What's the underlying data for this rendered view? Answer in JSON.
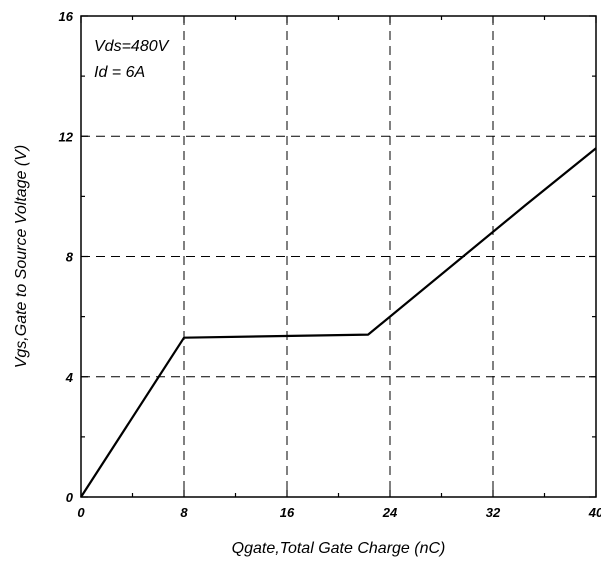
{
  "chart_data": {
    "type": "line",
    "title": "",
    "xlabel": "Qgate,Total Gate Charge (nC)",
    "ylabel": "Vgs,Gate to Source Voltage (V)",
    "xlim": [
      0,
      40
    ],
    "ylim": [
      0,
      16
    ],
    "x_ticks": [
      0,
      8,
      16,
      24,
      32,
      40
    ],
    "x_tick_labels": [
      "0",
      "8",
      "16",
      "24",
      "32",
      "40"
    ],
    "y_ticks": [
      0,
      4,
      8,
      12,
      16
    ],
    "y_tick_labels": [
      "0",
      "4",
      "8",
      "12",
      "16"
    ],
    "grid": true,
    "grid_style": "dashed",
    "annotations": [
      {
        "text": "Vds=480V",
        "position": "top-left"
      },
      {
        "text": "Id = 6A",
        "position": "top-left"
      }
    ],
    "series": [
      {
        "color": "#000000",
        "x": [
          0,
          8,
          22.3,
          34.5,
          40
        ],
        "y": [
          0,
          5.3,
          5.4,
          9.7,
          11.6
        ]
      }
    ]
  }
}
